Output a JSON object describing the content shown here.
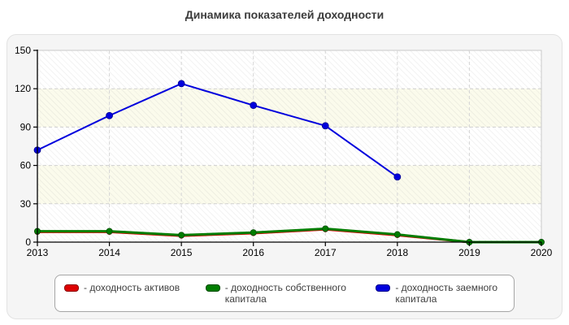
{
  "header": {
    "title": "Динамика показателей доходности"
  },
  "chart_data": {
    "type": "line",
    "title": "Динамика показателей доходности",
    "categories": [
      "2013",
      "2014",
      "2015",
      "2016",
      "2017",
      "2018",
      "2019",
      "2020"
    ],
    "series": [
      {
        "name": "доходность активов",
        "legend_label": "- доходность активов",
        "color": "#dd0000",
        "marker_border": "#8b0000",
        "values": [
          8,
          8,
          5,
          7,
          10,
          5.5,
          0,
          0
        ]
      },
      {
        "name": "доходность собственного капитала",
        "legend_label": "- доходность собственного капитала",
        "color": "#007d00",
        "marker_border": "#004b00",
        "values": [
          8.5,
          8.5,
          5.5,
          7.5,
          10.5,
          6,
          0,
          0
        ]
      },
      {
        "name": "доходность заемного капитала",
        "legend_label": "- доходность заемного капитала",
        "color": "#0000dd",
        "marker_border": "#00008b",
        "values": [
          72,
          99,
          124,
          107,
          91,
          51,
          null,
          null
        ]
      }
    ],
    "xlabel": "",
    "ylabel": "",
    "ylim": [
      0,
      150
    ],
    "yticks": [
      0,
      30,
      60,
      90,
      120,
      150
    ],
    "grid": true,
    "legend_position": "bottom",
    "colors": {
      "panel_background": "#f5f5f5",
      "plot_band": "#fbfbec",
      "gridline": "#cfcfcf",
      "axis": "#000000",
      "title_text": "#3b3b3b"
    }
  }
}
